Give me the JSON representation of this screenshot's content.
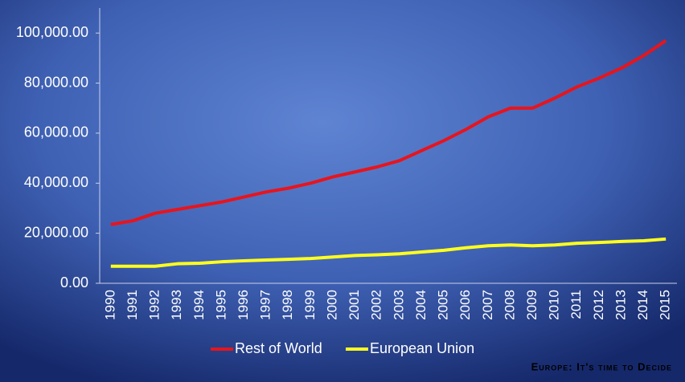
{
  "chart_data": {
    "type": "line",
    "categories": [
      "1990",
      "1991",
      "1992",
      "1993",
      "1994",
      "1995",
      "1996",
      "1997",
      "1998",
      "1999",
      "2000",
      "2001",
      "2002",
      "2003",
      "2004",
      "2005",
      "2006",
      "2007",
      "2008",
      "2009",
      "2010",
      "2011",
      "2012",
      "2013",
      "2014",
      "2015"
    ],
    "series": [
      {
        "name": "Rest of World",
        "color": "#e8141c",
        "values": [
          23500,
          25000,
          28000,
          29500,
          31000,
          32500,
          34500,
          36500,
          38000,
          40000,
          42500,
          44500,
          46500,
          49000,
          53000,
          57000,
          61500,
          66500,
          70000,
          70000,
          74000,
          78500,
          82000,
          86000,
          91000,
          97000
        ]
      },
      {
        "name": "European Union",
        "color": "#ffff1e",
        "values": [
          6800,
          6800,
          6800,
          7800,
          8000,
          8600,
          9000,
          9300,
          9600,
          9900,
          10500,
          11100,
          11400,
          11800,
          12500,
          13200,
          14200,
          15000,
          15300,
          15000,
          15300,
          16000,
          16300,
          16700,
          17000,
          17700
        ]
      }
    ],
    "ylim": [
      0,
      110000
    ],
    "yticks": [
      {
        "value": 0,
        "label": "0.00"
      },
      {
        "value": 20000,
        "label": "20,000.00"
      },
      {
        "value": 40000,
        "label": "40,000.00"
      },
      {
        "value": 60000,
        "label": "60,000.00"
      },
      {
        "value": 80000,
        "label": "80,000.00"
      },
      {
        "value": 100000,
        "label": "100,000.00"
      }
    ],
    "legend": "bottom",
    "footer": "Europe: It's time to Decide"
  }
}
